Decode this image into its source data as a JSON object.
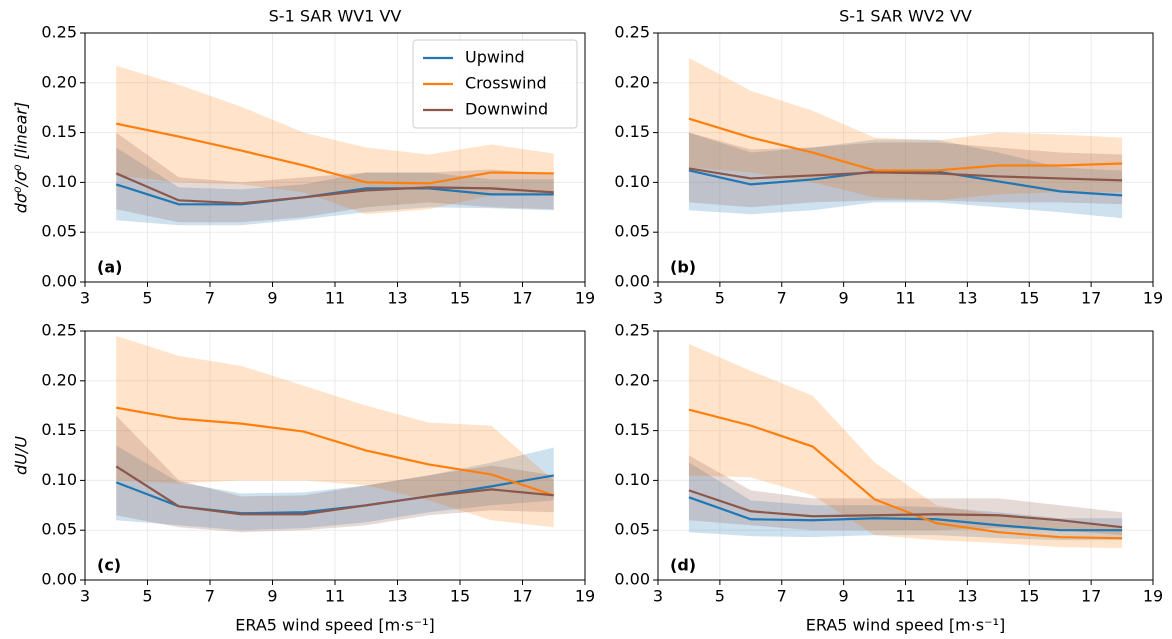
{
  "chart_data": [
    {
      "type": "line",
      "title": "S-1 SAR WV1 VV",
      "ylabel": "dσ⁰/σ⁰ [linear]",
      "panel": "(a)",
      "legend": "upper right",
      "grid": true,
      "x": [
        4,
        6,
        8,
        10,
        12,
        14,
        16,
        18
      ],
      "xlim": [
        3,
        19
      ],
      "xticks": [
        3,
        5,
        7,
        9,
        11,
        13,
        15,
        17,
        19
      ],
      "ylim": [
        0,
        0.25
      ],
      "yticks": [
        {
          "value": 0,
          "label": "0.00"
        },
        {
          "value": 0.05,
          "label": "0.05"
        },
        {
          "value": 0.1,
          "label": "0.10"
        },
        {
          "value": 0.15,
          "label": "0.15"
        },
        {
          "value": 0.2,
          "label": "0.20"
        },
        {
          "value": 0.25,
          "label": "0.25"
        }
      ],
      "series": [
        {
          "name": "Upwind",
          "color": "#1f77b4",
          "values": [
            0.098,
            0.078,
            0.078,
            0.085,
            0.094,
            0.094,
            0.088,
            0.088
          ],
          "lower": [
            0.062,
            0.057,
            0.057,
            0.063,
            0.07,
            0.075,
            0.074,
            0.072
          ],
          "upper": [
            0.135,
            0.095,
            0.093,
            0.098,
            0.11,
            0.11,
            0.103,
            0.103
          ]
        },
        {
          "name": "Crosswind",
          "color": "#ff7f0e",
          "values": [
            0.159,
            0.146,
            0.132,
            0.117,
            0.1,
            0.099,
            0.11,
            0.109
          ],
          "lower": [
            0.107,
            0.1,
            0.098,
            0.09,
            0.068,
            0.073,
            0.087,
            0.09
          ],
          "upper": [
            0.217,
            0.198,
            0.176,
            0.15,
            0.135,
            0.128,
            0.138,
            0.129
          ]
        },
        {
          "name": "Downwind",
          "color": "#8c564b",
          "values": [
            0.109,
            0.082,
            0.079,
            0.085,
            0.092,
            0.095,
            0.094,
            0.09
          ],
          "lower": [
            0.073,
            0.06,
            0.06,
            0.065,
            0.075,
            0.08,
            0.075,
            0.073
          ],
          "upper": [
            0.15,
            0.105,
            0.1,
            0.105,
            0.11,
            0.11,
            0.113,
            0.108
          ]
        }
      ]
    },
    {
      "type": "line",
      "title": "S-1 SAR WV2 VV",
      "panel": "(b)",
      "grid": true,
      "x": [
        4,
        6,
        8,
        10,
        12,
        14,
        16,
        18
      ],
      "xlim": [
        3,
        19
      ],
      "xticks": [
        3,
        5,
        7,
        9,
        11,
        13,
        15,
        17,
        19
      ],
      "ylim": [
        0,
        0.25
      ],
      "yticks": [
        {
          "value": 0,
          "label": "0.00"
        },
        {
          "value": 0.05,
          "label": "0.05"
        },
        {
          "value": 0.1,
          "label": "0.10"
        },
        {
          "value": 0.15,
          "label": "0.15"
        },
        {
          "value": 0.2,
          "label": "0.20"
        },
        {
          "value": 0.25,
          "label": "0.25"
        }
      ],
      "series": [
        {
          "color": "#1f77b4",
          "values": [
            0.112,
            0.098,
            0.103,
            0.111,
            0.111,
            0.101,
            0.091,
            0.087
          ],
          "lower": [
            0.072,
            0.068,
            0.072,
            0.08,
            0.08,
            0.075,
            0.07,
            0.064
          ],
          "upper": [
            0.15,
            0.13,
            0.135,
            0.143,
            0.143,
            0.13,
            0.115,
            0.112
          ]
        },
        {
          "color": "#ff7f0e",
          "values": [
            0.164,
            0.145,
            0.13,
            0.112,
            0.112,
            0.117,
            0.117,
            0.119
          ],
          "lower": [
            0.115,
            0.11,
            0.1,
            0.085,
            0.082,
            0.088,
            0.09,
            0.09
          ],
          "upper": [
            0.225,
            0.192,
            0.172,
            0.145,
            0.142,
            0.15,
            0.148,
            0.145
          ]
        },
        {
          "color": "#8c564b",
          "values": [
            0.114,
            0.104,
            0.107,
            0.11,
            0.109,
            0.106,
            0.104,
            0.102
          ],
          "lower": [
            0.08,
            0.075,
            0.08,
            0.082,
            0.082,
            0.08,
            0.08,
            0.078
          ],
          "upper": [
            0.15,
            0.133,
            0.135,
            0.14,
            0.14,
            0.135,
            0.13,
            0.128
          ]
        }
      ]
    },
    {
      "type": "line",
      "ylabel": "dU/U",
      "xlabel": "ERA5 wind speed [m·s⁻¹]",
      "panel": "(c)",
      "grid": true,
      "x": [
        4,
        6,
        8,
        10,
        12,
        14,
        16,
        18
      ],
      "xlim": [
        3,
        19
      ],
      "xticks": [
        3,
        5,
        7,
        9,
        11,
        13,
        15,
        17,
        19
      ],
      "ylim": [
        0,
        0.25
      ],
      "yticks": [
        {
          "value": 0,
          "label": "0.00"
        },
        {
          "value": 0.05,
          "label": "0.05"
        },
        {
          "value": 0.1,
          "label": "0.10"
        },
        {
          "value": 0.15,
          "label": "0.15"
        },
        {
          "value": 0.2,
          "label": "0.20"
        },
        {
          "value": 0.25,
          "label": "0.25"
        }
      ],
      "series": [
        {
          "color": "#1f77b4",
          "values": [
            0.098,
            0.074,
            0.067,
            0.068,
            0.075,
            0.084,
            0.094,
            0.105
          ],
          "lower": [
            0.06,
            0.055,
            0.05,
            0.052,
            0.058,
            0.068,
            0.075,
            0.08
          ],
          "upper": [
            0.135,
            0.098,
            0.087,
            0.088,
            0.095,
            0.105,
            0.118,
            0.133
          ]
        },
        {
          "color": "#ff7f0e",
          "values": [
            0.173,
            0.162,
            0.157,
            0.149,
            0.13,
            0.116,
            0.106,
            0.085
          ],
          "lower": [
            0.1,
            0.097,
            0.1,
            0.1,
            0.095,
            0.08,
            0.06,
            0.053
          ],
          "upper": [
            0.245,
            0.225,
            0.215,
            0.195,
            0.175,
            0.158,
            0.155,
            0.1
          ]
        },
        {
          "color": "#8c564b",
          "values": [
            0.114,
            0.074,
            0.066,
            0.066,
            0.075,
            0.084,
            0.091,
            0.085
          ],
          "lower": [
            0.065,
            0.053,
            0.048,
            0.05,
            0.055,
            0.065,
            0.07,
            0.068
          ],
          "upper": [
            0.165,
            0.1,
            0.084,
            0.085,
            0.095,
            0.105,
            0.115,
            0.105
          ]
        }
      ]
    },
    {
      "type": "line",
      "xlabel": "ERA5 wind speed [m·s⁻¹]",
      "panel": "(d)",
      "grid": true,
      "x": [
        4,
        6,
        8,
        10,
        12,
        14,
        16,
        18
      ],
      "xlim": [
        3,
        19
      ],
      "xticks": [
        3,
        5,
        7,
        9,
        11,
        13,
        15,
        17,
        19
      ],
      "ylim": [
        0,
        0.25
      ],
      "yticks": [
        {
          "value": 0,
          "label": "0.00"
        },
        {
          "value": 0.05,
          "label": "0.05"
        },
        {
          "value": 0.1,
          "label": "0.10"
        },
        {
          "value": 0.15,
          "label": "0.15"
        },
        {
          "value": 0.2,
          "label": "0.20"
        },
        {
          "value": 0.25,
          "label": "0.25"
        }
      ],
      "series": [
        {
          "color": "#1f77b4",
          "values": [
            0.083,
            0.061,
            0.06,
            0.062,
            0.061,
            0.055,
            0.05,
            0.05
          ],
          "lower": [
            0.048,
            0.044,
            0.043,
            0.045,
            0.045,
            0.042,
            0.04,
            0.04
          ],
          "upper": [
            0.118,
            0.08,
            0.075,
            0.075,
            0.073,
            0.068,
            0.062,
            0.062
          ]
        },
        {
          "color": "#ff7f0e",
          "values": [
            0.171,
            0.155,
            0.134,
            0.081,
            0.057,
            0.048,
            0.043,
            0.042
          ],
          "lower": [
            0.105,
            0.103,
            0.085,
            0.045,
            0.04,
            0.037,
            0.033,
            0.032
          ],
          "upper": [
            0.237,
            0.21,
            0.185,
            0.118,
            0.075,
            0.065,
            0.058,
            0.052
          ]
        },
        {
          "color": "#8c564b",
          "values": [
            0.09,
            0.069,
            0.064,
            0.065,
            0.066,
            0.065,
            0.06,
            0.053
          ],
          "lower": [
            0.06,
            0.055,
            0.05,
            0.05,
            0.05,
            0.052,
            0.05,
            0.045
          ],
          "upper": [
            0.125,
            0.09,
            0.082,
            0.082,
            0.082,
            0.082,
            0.075,
            0.068
          ]
        }
      ]
    }
  ]
}
